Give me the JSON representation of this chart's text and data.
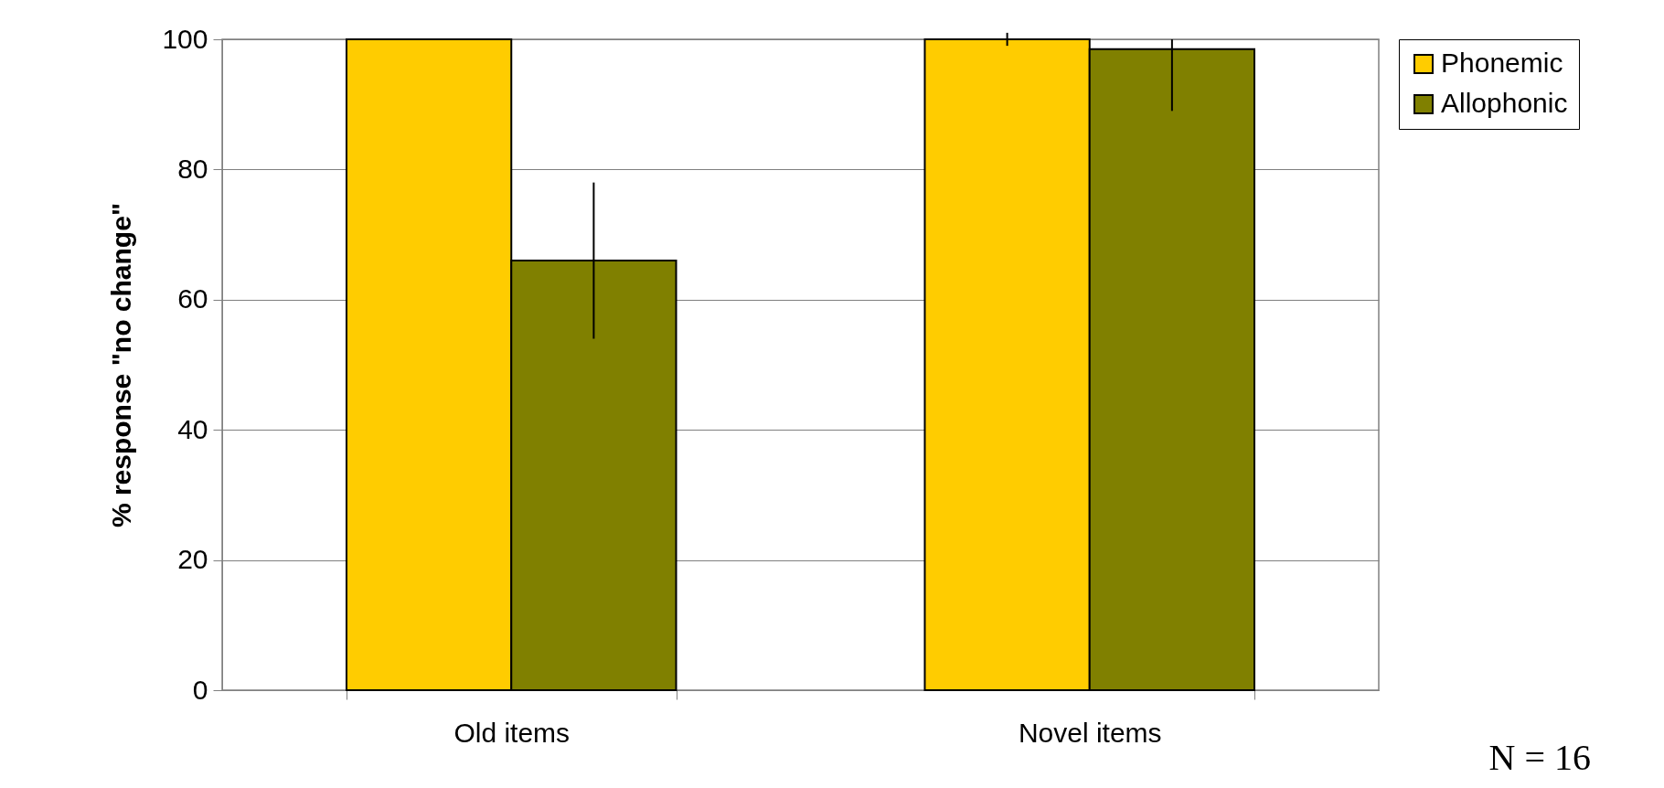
{
  "chart_data": {
    "type": "bar",
    "ylabel": "% response \"no change\"",
    "categories": [
      "Old items",
      "Novel items"
    ],
    "series": [
      {
        "name": "Phonemic",
        "color": "#ffcc00",
        "values": [
          100,
          100
        ],
        "errors": [
          null,
          1
        ]
      },
      {
        "name": "Allophonic",
        "color": "#808000",
        "values": [
          66,
          98.5
        ],
        "errors": [
          12,
          [
            89,
            100
          ]
        ]
      }
    ],
    "ylim": [
      0,
      100
    ],
    "yticks": [
      0,
      20,
      40,
      60,
      80,
      100
    ],
    "grid": "y",
    "legend": "right",
    "annotations": [
      "N = 16"
    ]
  }
}
